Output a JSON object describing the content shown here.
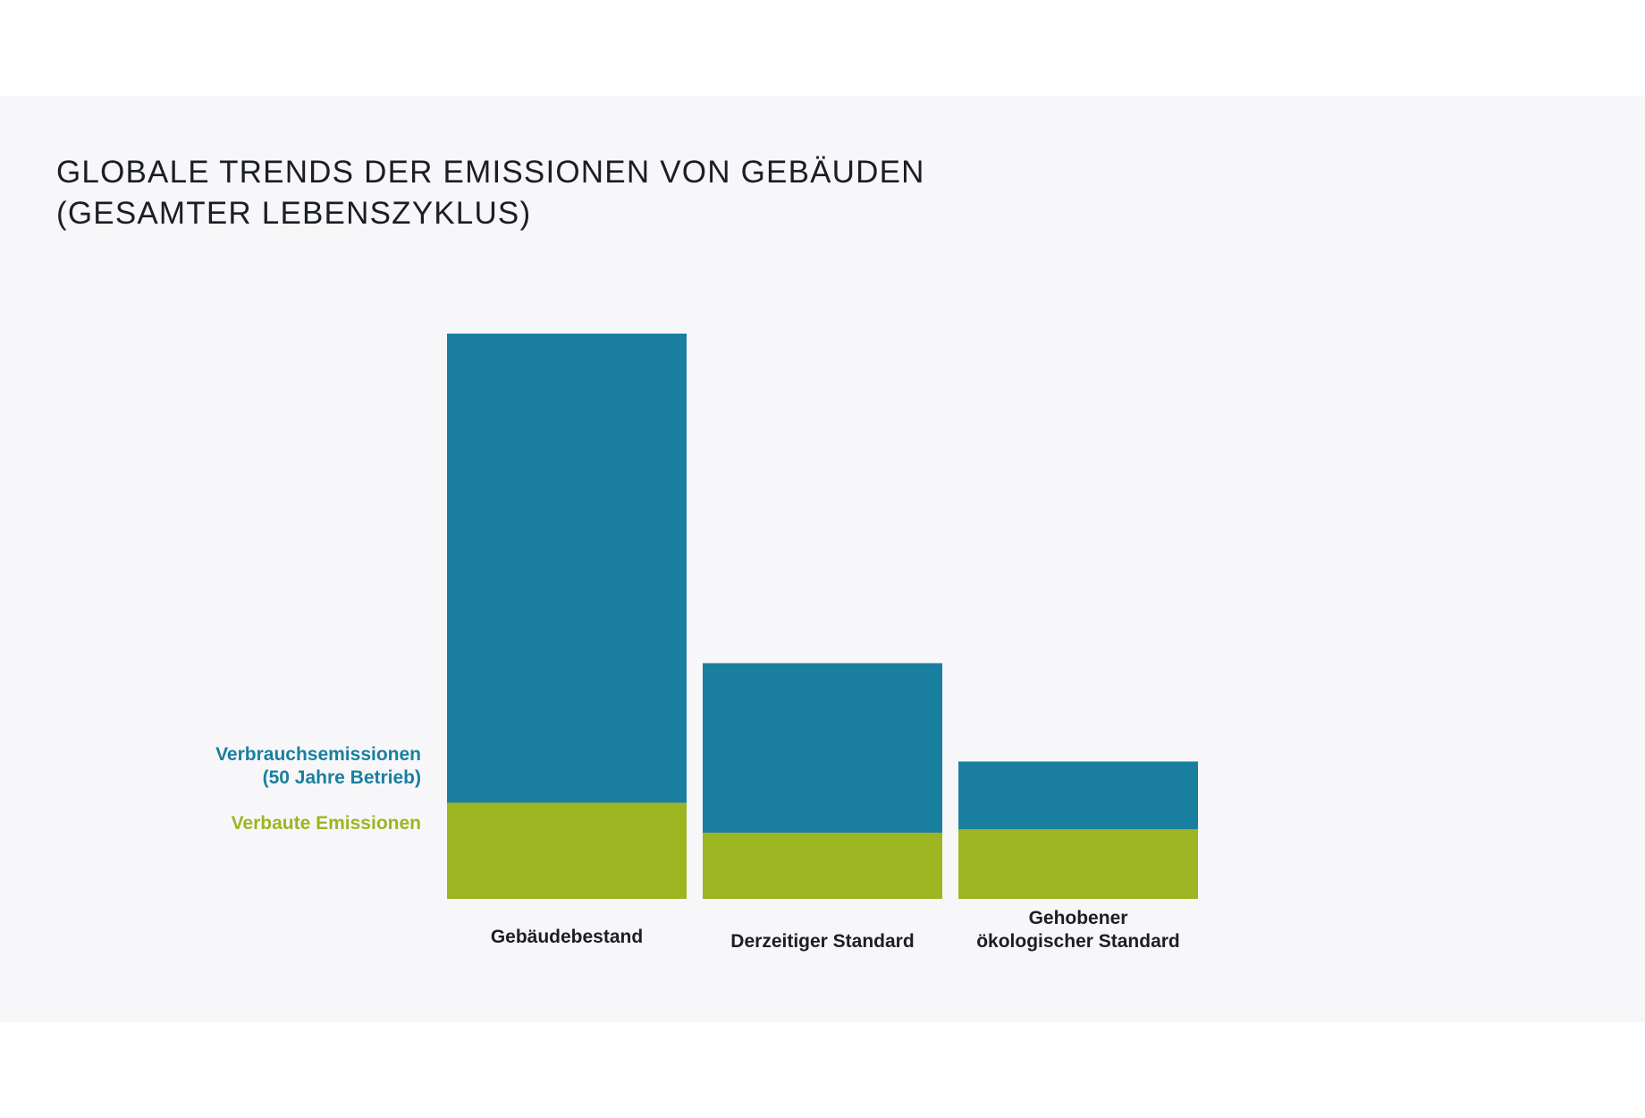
{
  "chart_data": {
    "type": "bar",
    "stacked": true,
    "title_lines": [
      "GLOBALE TRENDS DER EMISSIONEN VON GEBÄUDEN",
      "(GESAMTER LEBENSZYKLUS)"
    ],
    "categories": [
      [
        "Gebäudebestand"
      ],
      [
        "Derzeitiger Standard"
      ],
      [
        "Gehobener",
        "ökologischer Standard"
      ]
    ],
    "series": [
      {
        "name": "Verbaute Emissionen",
        "color": "#9db520",
        "values": [
          17,
          11.7,
          12.3
        ]
      },
      {
        "name_lines": [
          "Verbrauchsemissionen",
          "(50 Jahre Betrieb)"
        ],
        "color": "#1a7f9f",
        "values": [
          83,
          30,
          12
        ]
      }
    ],
    "ylim": [
      0,
      100
    ],
    "grid": false,
    "legend_placement": "left"
  }
}
